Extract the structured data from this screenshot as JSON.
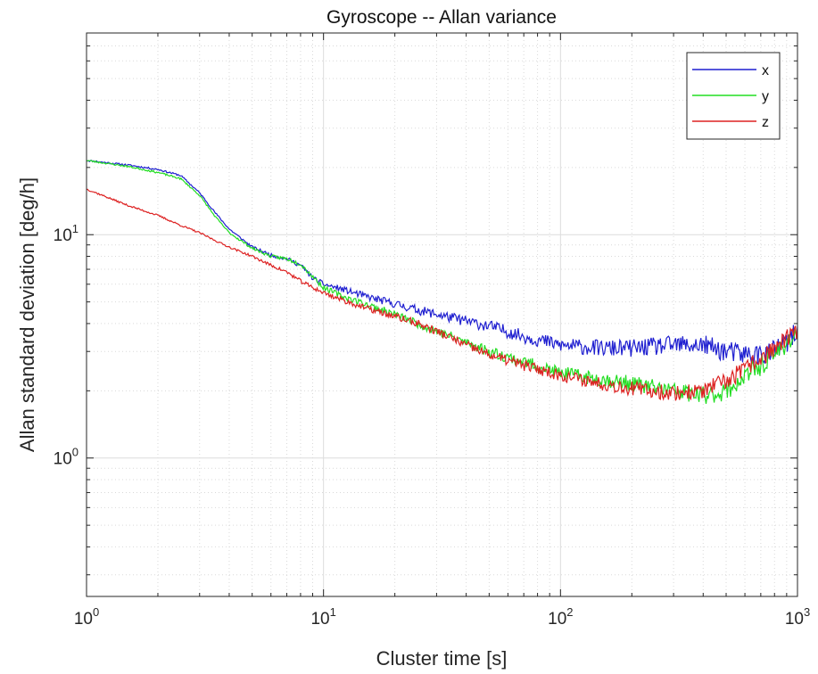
{
  "chart_data": {
    "type": "line",
    "title": "Gyroscope -- Allan variance",
    "xlabel": "Cluster time [s]",
    "ylabel": "Allan standard deviation [deg/h]",
    "xscale": "log",
    "yscale": "log",
    "xlim": [
      1,
      1000
    ],
    "ylim": [
      0.24,
      80
    ],
    "xticks": [
      {
        "base": "10",
        "exp": "0"
      },
      {
        "base": "10",
        "exp": "1"
      },
      {
        "base": "10",
        "exp": "2"
      },
      {
        "base": "10",
        "exp": "3"
      }
    ],
    "yticks": [
      {
        "base": "10",
        "exp": "0",
        "value": 1
      },
      {
        "base": "10",
        "exp": "1",
        "value": 10
      }
    ],
    "grid": true,
    "legend_position": "top-right",
    "series": [
      {
        "name": "x",
        "color": "#1f1fd0",
        "noise": 0.05,
        "seed": 11,
        "x": [
          1,
          1.5,
          2,
          2.5,
          3,
          3.5,
          4,
          5,
          6,
          7,
          8,
          9,
          10,
          12,
          15,
          20,
          25,
          30,
          40,
          50,
          70,
          100,
          150,
          200,
          300,
          400,
          500,
          600,
          700,
          800,
          900,
          1000
        ],
        "y": [
          21.5,
          20.5,
          19.6,
          18.4,
          15.4,
          12.5,
          10.6,
          8.8,
          8.1,
          7.8,
          7.3,
          6.4,
          6.0,
          5.7,
          5.3,
          4.9,
          4.6,
          4.4,
          4.1,
          3.9,
          3.5,
          3.2,
          3.1,
          3.1,
          3.2,
          3.2,
          3.0,
          2.9,
          2.9,
          3.0,
          3.3,
          3.6
        ]
      },
      {
        "name": "y",
        "color": "#22dd22",
        "noise": 0.045,
        "seed": 23,
        "x": [
          1,
          1.5,
          2,
          2.5,
          3,
          3.5,
          4,
          5,
          6,
          7,
          8,
          9,
          10,
          12,
          15,
          20,
          25,
          30,
          40,
          50,
          70,
          100,
          150,
          200,
          300,
          400,
          500,
          600,
          700,
          800,
          900,
          1000
        ],
        "y": [
          21.5,
          20.2,
          19.0,
          17.8,
          15.0,
          12.0,
          10.2,
          8.7,
          8.0,
          7.8,
          7.4,
          6.5,
          5.8,
          5.3,
          4.9,
          4.4,
          4.0,
          3.7,
          3.3,
          3.0,
          2.7,
          2.4,
          2.25,
          2.15,
          2.0,
          1.9,
          2.0,
          2.3,
          2.6,
          2.9,
          3.3,
          3.6
        ]
      },
      {
        "name": "z",
        "color": "#dd2222",
        "noise": 0.04,
        "seed": 37,
        "x": [
          1,
          1.5,
          2,
          2.5,
          3,
          3.5,
          4,
          5,
          6,
          7,
          8,
          9,
          10,
          12,
          15,
          20,
          25,
          30,
          40,
          50,
          70,
          100,
          150,
          200,
          300,
          400,
          500,
          600,
          700,
          800,
          900,
          1000
        ],
        "y": [
          16.0,
          13.5,
          12.2,
          11.0,
          10.2,
          9.4,
          8.8,
          8.0,
          7.3,
          6.8,
          6.2,
          5.8,
          5.5,
          5.1,
          4.7,
          4.3,
          4.0,
          3.7,
          3.2,
          2.9,
          2.6,
          2.35,
          2.15,
          2.05,
          1.95,
          2.0,
          2.2,
          2.5,
          2.8,
          3.1,
          3.4,
          3.7
        ]
      }
    ]
  }
}
